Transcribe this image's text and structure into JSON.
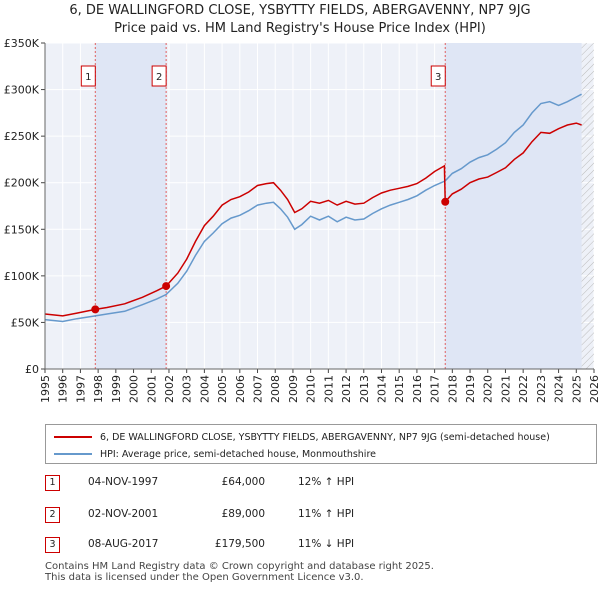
{
  "chart_data": {
    "type": "line",
    "title": "6, DE WALLINGFORD CLOSE, YSBYTTY FIELDS, ABERGAVENNY, NP7 9JG",
    "subtitle": "Price paid vs. HM Land Registry's House Price Index (HPI)",
    "xlim": [
      1995,
      2026
    ],
    "ylim": [
      0,
      350000
    ],
    "x_ticks": [
      "1995",
      "1996",
      "1997",
      "1998",
      "1999",
      "2000",
      "2001",
      "2002",
      "2003",
      "2004",
      "2005",
      "2006",
      "2007",
      "2008",
      "2009",
      "2010",
      "2011",
      "2012",
      "2013",
      "2014",
      "2015",
      "2016",
      "2017",
      "2018",
      "2019",
      "2020",
      "2021",
      "2022",
      "2023",
      "2024",
      "2025",
      "2026"
    ],
    "y_ticks": [
      {
        "value": 0,
        "label": "£0"
      },
      {
        "value": 50000,
        "label": "£50K"
      },
      {
        "value": 100000,
        "label": "£100K"
      },
      {
        "value": 150000,
        "label": "£150K"
      },
      {
        "value": 200000,
        "label": "£200K"
      },
      {
        "value": 250000,
        "label": "£250K"
      },
      {
        "value": 300000,
        "label": "£300K"
      },
      {
        "value": 350000,
        "label": "£350K"
      }
    ],
    "series": [
      {
        "name": "6, DE WALLINGFORD CLOSE, YSBYTTY FIELDS, ABERGAVENNY, NP7 9JG (semi-detached house)",
        "color": "#cc0000",
        "x": [
          1995,
          1996,
          1996.8,
          1997.84,
          1998.5,
          1999.5,
          2000.5,
          2001.3,
          2001.84,
          2002.5,
          2003.0,
          2003.5,
          2004.0,
          2004.5,
          2005.0,
          2005.5,
          2006.0,
          2006.5,
          2007.0,
          2007.5,
          2007.9,
          2008.3,
          2008.7,
          2009.1,
          2009.5,
          2010.0,
          2010.5,
          2011.0,
          2011.5,
          2012.0,
          2012.5,
          2013.0,
          2013.5,
          2014.0,
          2014.5,
          2015.0,
          2015.5,
          2016.0,
          2016.5,
          2017.0,
          2017.55,
          2017.6,
          2018.0,
          2018.5,
          2019.0,
          2019.5,
          2020.0,
          2020.5,
          2021.0,
          2021.5,
          2022.0,
          2022.5,
          2023.0,
          2023.5,
          2024.0,
          2024.5,
          2025.0,
          2025.3
        ],
        "y": [
          59000,
          57000,
          60000,
          64000,
          66000,
          70000,
          77000,
          84000,
          89000,
          103000,
          118000,
          137000,
          154000,
          164000,
          176000,
          182000,
          185000,
          190000,
          197000,
          199000,
          200000,
          192000,
          182000,
          168000,
          172000,
          180000,
          178000,
          181000,
          176000,
          180000,
          177000,
          178000,
          184000,
          189000,
          192000,
          194000,
          196000,
          199000,
          205000,
          212000,
          218000,
          179500,
          188000,
          193000,
          200000,
          204000,
          206000,
          211000,
          216000,
          225000,
          232000,
          244000,
          254000,
          253000,
          258000,
          262000,
          264000,
          262000
        ]
      },
      {
        "name": "HPI: Average price, semi-detached house, Monmouthshire",
        "color": "#6699cc",
        "x": [
          1995,
          1996,
          1996.8,
          1997.84,
          1998.5,
          1999.5,
          2000.5,
          2001.3,
          2001.84,
          2002.5,
          2003.0,
          2003.5,
          2004.0,
          2004.5,
          2005.0,
          2005.5,
          2006.0,
          2006.5,
          2007.0,
          2007.5,
          2007.9,
          2008.3,
          2008.7,
          2009.1,
          2009.5,
          2010.0,
          2010.5,
          2011.0,
          2011.5,
          2012.0,
          2012.5,
          2013.0,
          2013.5,
          2014.0,
          2014.5,
          2015.0,
          2015.5,
          2016.0,
          2016.5,
          2017.0,
          2017.6,
          2018.0,
          2018.5,
          2019.0,
          2019.5,
          2020.0,
          2020.5,
          2021.0,
          2021.5,
          2022.0,
          2022.5,
          2023.0,
          2023.5,
          2024.0,
          2024.5,
          2025.0,
          2025.3
        ],
        "y": [
          53000,
          51000,
          54000,
          57000,
          59000,
          62000,
          69000,
          75000,
          80000,
          92000,
          105000,
          122000,
          137000,
          146000,
          156000,
          162000,
          165000,
          170000,
          176000,
          178000,
          179000,
          172000,
          163000,
          150000,
          155000,
          164000,
          160000,
          164000,
          158000,
          163000,
          160000,
          161000,
          167000,
          172000,
          176000,
          179000,
          182000,
          186000,
          192000,
          197000,
          202000,
          210000,
          215000,
          222000,
          227000,
          230000,
          236000,
          243000,
          254000,
          262000,
          275000,
          285000,
          287000,
          283000,
          287000,
          292000,
          295000
        ]
      }
    ],
    "sales": [
      {
        "num": "1",
        "x": 1997.84,
        "y": 64000
      },
      {
        "num": "2",
        "x": 2001.84,
        "y": 89000
      },
      {
        "num": "3",
        "x": 2017.6,
        "y": 179500
      }
    ],
    "shaded_ranges": [
      [
        1997.84,
        2001.84
      ],
      [
        2017.6,
        2025.3
      ]
    ],
    "hatch_start": 2025.3
  },
  "header": {
    "title": "6, DE WALLINGFORD CLOSE, YSBYTTY FIELDS, ABERGAVENNY, NP7 9JG",
    "subtitle": "Price paid vs. HM Land Registry's House Price Index (HPI)"
  },
  "legend": {
    "property_label": "6, DE WALLINGFORD CLOSE, YSBYTTY FIELDS, ABERGAVENNY, NP7 9JG (semi-detached house)",
    "hpi_label": "HPI: Average price, semi-detached house, Monmouthshire",
    "property_color": "#cc0000",
    "hpi_color": "#6699cc"
  },
  "sales_table": [
    {
      "num": "1",
      "date": "04-NOV-1997",
      "price": "£64,000",
      "hpi": "12% ↑ HPI"
    },
    {
      "num": "2",
      "date": "02-NOV-2001",
      "price": "£89,000",
      "hpi": "11% ↑ HPI"
    },
    {
      "num": "3",
      "date": "08-AUG-2017",
      "price": "£179,500",
      "hpi": "11% ↓ HPI"
    }
  ],
  "footer": {
    "line1": "Contains HM Land Registry data © Crown copyright and database right 2025.",
    "line2": "This data is licensed under the Open Government Licence v3.0."
  }
}
